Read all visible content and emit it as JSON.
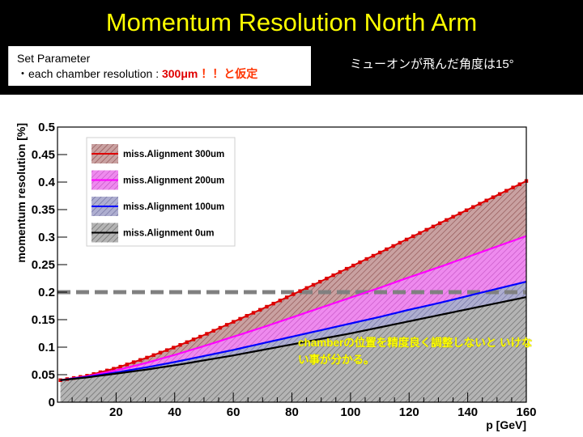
{
  "slide": {
    "title": "Momentum Resolution North Arm",
    "param_line1": "Set Parameter",
    "param_line2_prefix": "・each chamber resolution : ",
    "param_line2_value": "300μm",
    "param_line2_suffix": " ！！と仮定",
    "angle_note": "ミューオンが飛んだ角度は15°",
    "annotation": "chamberの位置を精度良く調整しないと いけない事が分かる。"
  },
  "chart_data": {
    "type": "area",
    "xlabel": "p [GeV]",
    "ylabel": "momentum resolution [%]",
    "xlim": [
      0,
      160
    ],
    "ylim": [
      0,
      0.5
    ],
    "x_ticks": [
      20,
      40,
      60,
      80,
      100,
      120,
      140,
      160
    ],
    "y_ticks": [
      0,
      0.05,
      0.1,
      0.15,
      0.2,
      0.25,
      0.3,
      0.35,
      0.4,
      0.45,
      0.5
    ],
    "y_tick_labels": [
      "0",
      "0.05",
      "0.1",
      "0.15",
      "0.2",
      "0.25",
      "0.3",
      "0.35",
      "0.4",
      "0.45",
      "0.5"
    ],
    "grid": false,
    "legend_position": "top-left",
    "reference_line": {
      "y": 0.2,
      "color": "#808080"
    },
    "x": [
      1,
      10,
      20,
      30,
      40,
      50,
      60,
      70,
      80,
      90,
      100,
      110,
      120,
      130,
      140,
      150,
      160
    ],
    "series": [
      {
        "name": "miss.Alignment 300um",
        "color": "#dd0000",
        "fill": "#c8a0a0",
        "values": [
          0.04,
          0.048,
          0.062,
          0.08,
          0.1,
          0.122,
          0.146,
          0.17,
          0.195,
          0.22,
          0.246,
          0.272,
          0.298,
          0.324,
          0.35,
          0.376,
          0.402
        ]
      },
      {
        "name": "miss.Alignment 200um",
        "color": "#ff00ff",
        "fill": "#ee88ee",
        "values": [
          0.04,
          0.047,
          0.058,
          0.071,
          0.086,
          0.102,
          0.119,
          0.136,
          0.154,
          0.172,
          0.19,
          0.208,
          0.227,
          0.245,
          0.264,
          0.283,
          0.302
        ]
      },
      {
        "name": "miss.Alignment 100um",
        "color": "#0000ff",
        "fill": "#a8a8cc",
        "values": [
          0.04,
          0.046,
          0.054,
          0.063,
          0.073,
          0.084,
          0.095,
          0.107,
          0.119,
          0.131,
          0.143,
          0.155,
          0.168,
          0.18,
          0.193,
          0.206,
          0.219
        ]
      },
      {
        "name": "miss.Alignment    0um",
        "color": "#000000",
        "fill": "#b0b0b0",
        "values": [
          0.04,
          0.045,
          0.052,
          0.059,
          0.067,
          0.076,
          0.085,
          0.095,
          0.105,
          0.115,
          0.125,
          0.136,
          0.147,
          0.158,
          0.169,
          0.18,
          0.191
        ]
      }
    ]
  }
}
